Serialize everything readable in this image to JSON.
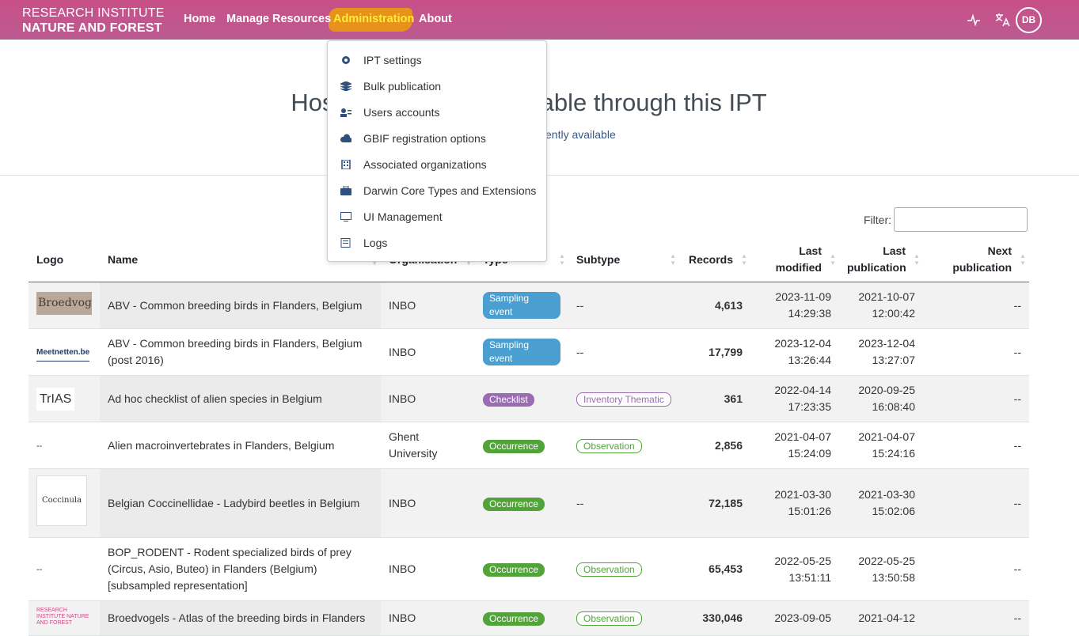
{
  "header": {
    "brand": [
      "RESEARCH INSTITUTE",
      "NATURE AND FOREST"
    ],
    "nav": [
      "Home",
      "Manage Resources",
      "Administration",
      "About"
    ],
    "avatar": "DB"
  },
  "menu": {
    "items": [
      "IPT settings",
      "Bulk publication",
      "Users accounts",
      "GBIF registration options",
      "Associated organizations",
      "Darwin Core Types and Extensions",
      "UI Management",
      "Logs"
    ]
  },
  "hero": {
    "title": "Hosted resources available through this IPT",
    "subtitle": "ently available"
  },
  "filter": {
    "label": "Filter:"
  },
  "table": {
    "columns": [
      "Logo",
      "Name",
      "Organisation",
      "Type",
      "Subtype",
      "Records",
      "Last modified",
      "Last publication",
      "Next publication"
    ],
    "rows": [
      {
        "logo": "Broedvogel",
        "name": "ABV - Common breeding birds in Flanders, Belgium",
        "org": "INBO",
        "type": {
          "label": "Sampling event",
          "color": "#4a9fd0"
        },
        "subtype": {
          "label": "--"
        },
        "records": "4,613",
        "modified": [
          "2023-11-09",
          "14:29:38"
        ],
        "published": [
          "2021-10-07",
          "12:00:42"
        ],
        "next": "--"
      },
      {
        "logo": "Meetnetten.be",
        "name": "ABV - Common breeding birds in Flanders, Belgium (post 2016)",
        "org": "INBO",
        "type": {
          "label": "Sampling event",
          "color": "#4a9fd0"
        },
        "subtype": {
          "label": "--"
        },
        "records": "17,799",
        "modified": [
          "2023-12-04",
          "13:26:44"
        ],
        "published": [
          "2023-12-04",
          "13:27:07"
        ],
        "next": "--"
      },
      {
        "logo": "TrIAS",
        "name": "Ad hoc checklist of alien species in Belgium",
        "org": "INBO",
        "type": {
          "label": "Checklist",
          "color": "#9a6cb4"
        },
        "subtype": {
          "label": "Inventory Thematic",
          "color": "#9a6cb4"
        },
        "records": "361",
        "modified": [
          "2022-04-14",
          "17:23:35"
        ],
        "published": [
          "2020-09-25",
          "16:08:40"
        ],
        "next": "--"
      },
      {
        "logo": "--",
        "name": "Alien macroinvertebrates in Flanders, Belgium",
        "org": "Ghent University",
        "type": {
          "label": "Occurrence",
          "color": "#52a43a"
        },
        "subtype": {
          "label": "Observation",
          "color": "#52a43a"
        },
        "records": "2,856",
        "modified": [
          "2021-04-07",
          "15:24:09"
        ],
        "published": [
          "2021-04-07",
          "15:24:16"
        ],
        "next": "--"
      },
      {
        "logo": "Coccinula",
        "name": "Belgian Coccinellidae - Ladybird beetles in Belgium",
        "org": "INBO",
        "type": {
          "label": "Occurrence",
          "color": "#52a43a"
        },
        "subtype": {
          "label": "--"
        },
        "records": "72,185",
        "modified": [
          "2021-03-30",
          "15:01:26"
        ],
        "published": [
          "2021-03-30",
          "15:02:06"
        ],
        "next": "--"
      },
      {
        "logo": "--",
        "name": "BOP_RODENT - Rodent specialized birds of prey (Circus, Asio, Buteo) in Flanders (Belgium) [subsampled representation]",
        "org": "INBO",
        "type": {
          "label": "Occurrence",
          "color": "#52a43a"
        },
        "subtype": {
          "label": "Observation",
          "color": "#52a43a"
        },
        "records": "65,453",
        "modified": [
          "2022-05-25",
          "13:51:11"
        ],
        "published": [
          "2022-05-25",
          "13:50:58"
        ],
        "next": "--"
      },
      {
        "logo": "RESEARCH INSTITUTE NATURE AND FOREST",
        "name": "Broedvogels - Atlas of the breeding birds in Flanders",
        "org": "INBO",
        "type": {
          "label": "Occurrence",
          "color": "#52a43a"
        },
        "subtype": {
          "label": "Observation",
          "color": "#52a43a"
        },
        "records": "330,046",
        "modified": [
          "2023-09-05"
        ],
        "published": [
          "2021-04-12"
        ],
        "next": "--"
      }
    ]
  }
}
